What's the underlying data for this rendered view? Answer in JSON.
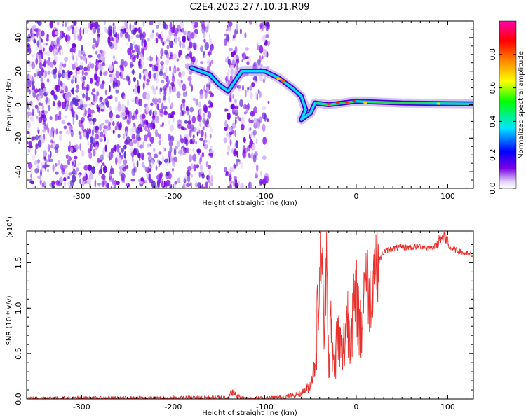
{
  "title": "C2E4.2023.277.10.31.R09",
  "top": {
    "xlabel": "Height of straight line (km)",
    "ylabel": "Frequency (Hz)",
    "colorbar_label": "Normalized spectral amplitude"
  },
  "bottom": {
    "xlabel": "Height of straight line (km)",
    "ylabel": "SNR (10 * v/v)",
    "exponent_label": "(x10",
    "exponent_power": "4",
    "exponent_close": ")"
  },
  "chart_data": [
    {
      "type": "heatmap",
      "title": "C2E4.2023.277.10.31.R09",
      "xlabel": "Height of straight line (km)",
      "ylabel": "Frequency (Hz)",
      "xlim": [
        -360,
        128
      ],
      "ylim": [
        -50,
        50
      ],
      "xticks": [
        -300,
        -200,
        -100,
        0,
        100
      ],
      "xtick_labels": [
        "-300",
        "-200",
        "-100",
        "0",
        "100"
      ],
      "yticks": [
        -40,
        -20,
        0,
        20,
        40
      ],
      "ytick_labels": [
        "-40",
        "-20",
        "0",
        "20",
        "40"
      ],
      "colorbar": {
        "label": "Normalized spectral amplitude",
        "range": [
          0,
          1
        ],
        "ticks": [
          0.0,
          0.2,
          0.4,
          0.6,
          0.8
        ],
        "tick_labels": [
          "0.0",
          "0.2",
          "0.4",
          "0.6",
          "0.8"
        ],
        "colormap": [
          "#ffffff",
          "#d9c2f5",
          "#7a00e6",
          "#0000ff",
          "#00e5ff",
          "#00ff00",
          "#ffff00",
          "#ff8800",
          "#ff0000",
          "#ff00aa"
        ]
      },
      "noise_region_x": [
        -360,
        -95
      ],
      "data_gap_x": [
        -157,
        -143
      ],
      "signal_track": [
        {
          "x": -180,
          "y": 22
        },
        {
          "x": -160,
          "y": 18
        },
        {
          "x": -150,
          "y": 12
        },
        {
          "x": -140,
          "y": 8
        },
        {
          "x": -125,
          "y": 20
        },
        {
          "x": -100,
          "y": 20
        },
        {
          "x": -85,
          "y": 16
        },
        {
          "x": -70,
          "y": 10
        },
        {
          "x": -60,
          "y": 5
        },
        {
          "x": -55,
          "y": -3
        },
        {
          "x": -60,
          "y": -9
        },
        {
          "x": -50,
          "y": -5
        },
        {
          "x": -45,
          "y": 1
        },
        {
          "x": -30,
          "y": 0
        },
        {
          "x": -15,
          "y": 1
        },
        {
          "x": 0,
          "y": 2
        },
        {
          "x": 50,
          "y": 1
        },
        {
          "x": 128,
          "y": 0.5
        }
      ]
    },
    {
      "type": "line",
      "xlabel": "Height of straight line (km)",
      "ylabel": "SNR (10 * v/v)",
      "xlim": [
        -360,
        128
      ],
      "ylim": [
        0,
        1.85
      ],
      "y_scale_factor": "x10^4",
      "xticks": [
        -300,
        -200,
        -100,
        0,
        100
      ],
      "xtick_labels": [
        "-300",
        "-200",
        "-100",
        "0",
        "100"
      ],
      "yticks": [
        0.0,
        0.5,
        1.0,
        1.5
      ],
      "ytick_labels": [
        "0.0",
        "0.5",
        "1.0",
        "1.5"
      ],
      "color": "#e8312d",
      "series": [
        {
          "x": [
            -360,
            -200,
            -140,
            -135,
            -130,
            -120,
            -100,
            -80,
            -60,
            -50,
            -45,
            -40,
            -38,
            -35,
            -32,
            -30,
            -28,
            -25,
            -20,
            -15,
            -10,
            -5,
            0,
            5,
            10,
            15,
            20,
            25,
            30,
            40,
            50,
            60,
            70,
            80,
            90,
            95,
            100,
            110,
            120,
            128
          ],
          "y": [
            0.01,
            0.01,
            0.02,
            0.08,
            0.03,
            0.01,
            0.01,
            0.02,
            0.06,
            0.15,
            0.4,
            1.3,
            1.75,
            0.7,
            1.8,
            0.3,
            0.8,
            0.35,
            0.7,
            0.45,
            0.9,
            0.8,
            1.15,
            0.7,
            1.45,
            1.1,
            1.5,
            1.52,
            1.62,
            1.66,
            1.67,
            1.67,
            1.68,
            1.66,
            1.7,
            1.78,
            1.68,
            1.63,
            1.6,
            1.58
          ]
        }
      ]
    }
  ]
}
